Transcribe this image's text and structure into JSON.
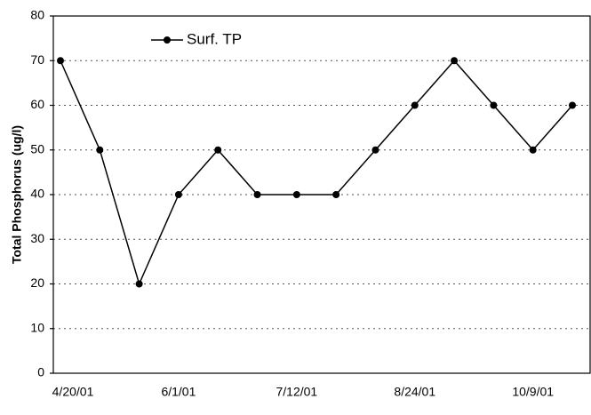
{
  "chart_data": {
    "type": "line",
    "y_label": "Total Phosphorus (ug/l)",
    "categories": [
      "4/20/01",
      null,
      null,
      "6/1/01",
      null,
      null,
      "7/12/01",
      null,
      null,
      "8/24/01",
      null,
      null,
      "10/9/01",
      null
    ],
    "series": [
      {
        "name": "Surf. TP",
        "color": "#000000",
        "values": [
          70,
          50,
          20,
          40,
          50,
          40,
          40,
          40,
          50,
          60,
          70,
          60,
          50,
          60
        ]
      }
    ],
    "ylim": [
      0,
      80
    ],
    "yticks": [
      0,
      10,
      20,
      30,
      40,
      50,
      60,
      70,
      80
    ],
    "grid": true,
    "legend": "top-left"
  }
}
